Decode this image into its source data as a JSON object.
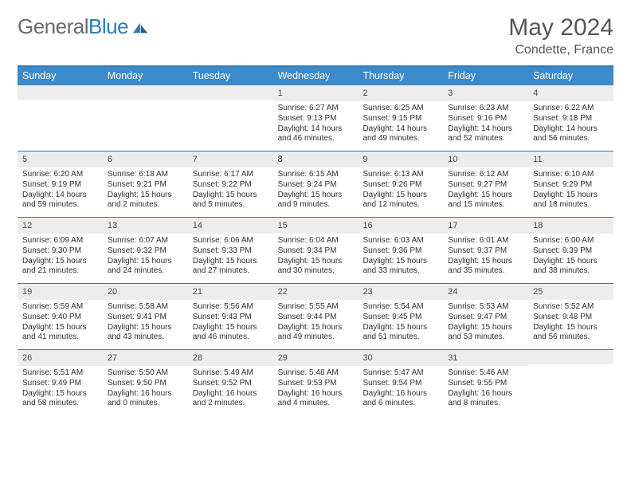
{
  "brand": {
    "left": "General",
    "right": "Blue",
    "logo_color": "#2b7bbf"
  },
  "title": "May 2024",
  "location": "Condette, France",
  "colors": {
    "header_bg": "#3d8ac9",
    "header_text": "#ffffff",
    "rule": "#2f7ab5",
    "daynum_bg": "#ededed",
    "text": "#2f2f2f",
    "title_text": "#565656"
  },
  "dow": [
    "Sunday",
    "Monday",
    "Tuesday",
    "Wednesday",
    "Thursday",
    "Friday",
    "Saturday"
  ],
  "weeks": [
    [
      {
        "n": "",
        "l": [
          "",
          "",
          ""
        ]
      },
      {
        "n": "",
        "l": [
          "",
          "",
          ""
        ]
      },
      {
        "n": "",
        "l": [
          "",
          "",
          ""
        ]
      },
      {
        "n": "1",
        "l": [
          "Sunrise: 6:27 AM",
          "Sunset: 9:13 PM",
          "Daylight: 14 hours and 46 minutes."
        ]
      },
      {
        "n": "2",
        "l": [
          "Sunrise: 6:25 AM",
          "Sunset: 9:15 PM",
          "Daylight: 14 hours and 49 minutes."
        ]
      },
      {
        "n": "3",
        "l": [
          "Sunrise: 6:23 AM",
          "Sunset: 9:16 PM",
          "Daylight: 14 hours and 52 minutes."
        ]
      },
      {
        "n": "4",
        "l": [
          "Sunrise: 6:22 AM",
          "Sunset: 9:18 PM",
          "Daylight: 14 hours and 56 minutes."
        ]
      }
    ],
    [
      {
        "n": "5",
        "l": [
          "Sunrise: 6:20 AM",
          "Sunset: 9:19 PM",
          "Daylight: 14 hours and 59 minutes."
        ]
      },
      {
        "n": "6",
        "l": [
          "Sunrise: 6:18 AM",
          "Sunset: 9:21 PM",
          "Daylight: 15 hours and 2 minutes."
        ]
      },
      {
        "n": "7",
        "l": [
          "Sunrise: 6:17 AM",
          "Sunset: 9:22 PM",
          "Daylight: 15 hours and 5 minutes."
        ]
      },
      {
        "n": "8",
        "l": [
          "Sunrise: 6:15 AM",
          "Sunset: 9:24 PM",
          "Daylight: 15 hours and 9 minutes."
        ]
      },
      {
        "n": "9",
        "l": [
          "Sunrise: 6:13 AM",
          "Sunset: 9:26 PM",
          "Daylight: 15 hours and 12 minutes."
        ]
      },
      {
        "n": "10",
        "l": [
          "Sunrise: 6:12 AM",
          "Sunset: 9:27 PM",
          "Daylight: 15 hours and 15 minutes."
        ]
      },
      {
        "n": "11",
        "l": [
          "Sunrise: 6:10 AM",
          "Sunset: 9:29 PM",
          "Daylight: 15 hours and 18 minutes."
        ]
      }
    ],
    [
      {
        "n": "12",
        "l": [
          "Sunrise: 6:09 AM",
          "Sunset: 9:30 PM",
          "Daylight: 15 hours and 21 minutes."
        ]
      },
      {
        "n": "13",
        "l": [
          "Sunrise: 6:07 AM",
          "Sunset: 9:32 PM",
          "Daylight: 15 hours and 24 minutes."
        ]
      },
      {
        "n": "14",
        "l": [
          "Sunrise: 6:06 AM",
          "Sunset: 9:33 PM",
          "Daylight: 15 hours and 27 minutes."
        ]
      },
      {
        "n": "15",
        "l": [
          "Sunrise: 6:04 AM",
          "Sunset: 9:34 PM",
          "Daylight: 15 hours and 30 minutes."
        ]
      },
      {
        "n": "16",
        "l": [
          "Sunrise: 6:03 AM",
          "Sunset: 9:36 PM",
          "Daylight: 15 hours and 33 minutes."
        ]
      },
      {
        "n": "17",
        "l": [
          "Sunrise: 6:01 AM",
          "Sunset: 9:37 PM",
          "Daylight: 15 hours and 35 minutes."
        ]
      },
      {
        "n": "18",
        "l": [
          "Sunrise: 6:00 AM",
          "Sunset: 9:39 PM",
          "Daylight: 15 hours and 38 minutes."
        ]
      }
    ],
    [
      {
        "n": "19",
        "l": [
          "Sunrise: 5:59 AM",
          "Sunset: 9:40 PM",
          "Daylight: 15 hours and 41 minutes."
        ]
      },
      {
        "n": "20",
        "l": [
          "Sunrise: 5:58 AM",
          "Sunset: 9:41 PM",
          "Daylight: 15 hours and 43 minutes."
        ]
      },
      {
        "n": "21",
        "l": [
          "Sunrise: 5:56 AM",
          "Sunset: 9:43 PM",
          "Daylight: 15 hours and 46 minutes."
        ]
      },
      {
        "n": "22",
        "l": [
          "Sunrise: 5:55 AM",
          "Sunset: 9:44 PM",
          "Daylight: 15 hours and 49 minutes."
        ]
      },
      {
        "n": "23",
        "l": [
          "Sunrise: 5:54 AM",
          "Sunset: 9:45 PM",
          "Daylight: 15 hours and 51 minutes."
        ]
      },
      {
        "n": "24",
        "l": [
          "Sunrise: 5:53 AM",
          "Sunset: 9:47 PM",
          "Daylight: 15 hours and 53 minutes."
        ]
      },
      {
        "n": "25",
        "l": [
          "Sunrise: 5:52 AM",
          "Sunset: 9:48 PM",
          "Daylight: 15 hours and 56 minutes."
        ]
      }
    ],
    [
      {
        "n": "26",
        "l": [
          "Sunrise: 5:51 AM",
          "Sunset: 9:49 PM",
          "Daylight: 15 hours and 58 minutes."
        ]
      },
      {
        "n": "27",
        "l": [
          "Sunrise: 5:50 AM",
          "Sunset: 9:50 PM",
          "Daylight: 16 hours and 0 minutes."
        ]
      },
      {
        "n": "28",
        "l": [
          "Sunrise: 5:49 AM",
          "Sunset: 9:52 PM",
          "Daylight: 16 hours and 2 minutes."
        ]
      },
      {
        "n": "29",
        "l": [
          "Sunrise: 5:48 AM",
          "Sunset: 9:53 PM",
          "Daylight: 16 hours and 4 minutes."
        ]
      },
      {
        "n": "30",
        "l": [
          "Sunrise: 5:47 AM",
          "Sunset: 9:54 PM",
          "Daylight: 16 hours and 6 minutes."
        ]
      },
      {
        "n": "31",
        "l": [
          "Sunrise: 5:46 AM",
          "Sunset: 9:55 PM",
          "Daylight: 16 hours and 8 minutes."
        ]
      },
      {
        "n": "",
        "l": [
          "",
          "",
          ""
        ]
      }
    ]
  ]
}
